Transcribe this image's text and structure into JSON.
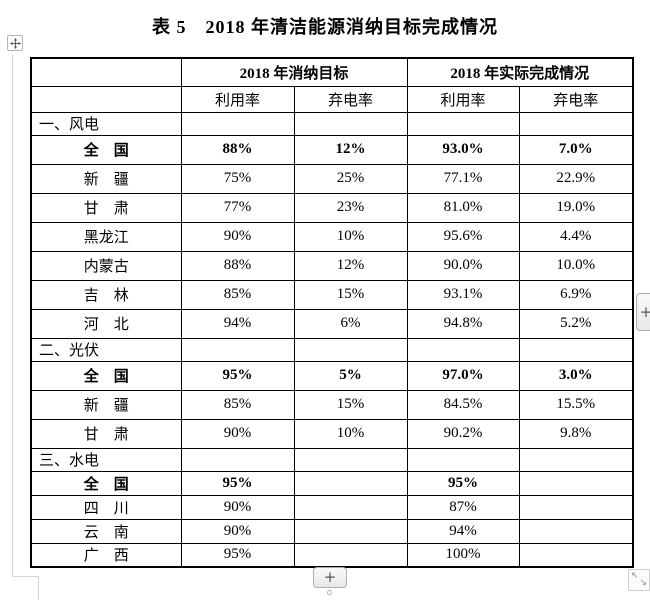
{
  "title": "表 5　2018 年清洁能源消纳目标完成情况",
  "table": {
    "header_groups": {
      "blank": "",
      "target": "2018 年消纳目标",
      "actual": "2018 年实际完成情况"
    },
    "subheaders": [
      "利用率",
      "弃电率",
      "利用率",
      "弃电率"
    ],
    "rows": [
      {
        "type": "section",
        "label": "一、风电",
        "cells": [
          "",
          "",
          "",
          ""
        ]
      },
      {
        "type": "data",
        "bold": true,
        "label": "全　国",
        "cells": [
          "88%",
          "12%",
          "93.0%",
          "7.0%"
        ]
      },
      {
        "type": "data",
        "bold": false,
        "label": "新　疆",
        "cells": [
          "75%",
          "25%",
          "77.1%",
          "22.9%"
        ]
      },
      {
        "type": "data",
        "bold": false,
        "label": "甘　肃",
        "cells": [
          "77%",
          "23%",
          "81.0%",
          "19.0%"
        ]
      },
      {
        "type": "data",
        "bold": false,
        "label": "黑龙江",
        "cells": [
          "90%",
          "10%",
          "95.6%",
          "4.4%"
        ]
      },
      {
        "type": "data",
        "bold": false,
        "label": "内蒙古",
        "cells": [
          "88%",
          "12%",
          "90.0%",
          "10.0%"
        ]
      },
      {
        "type": "data",
        "bold": false,
        "label": "吉　林",
        "cells": [
          "85%",
          "15%",
          "93.1%",
          "6.9%"
        ]
      },
      {
        "type": "data",
        "bold": false,
        "label": "河　北",
        "cells": [
          "94%",
          "6%",
          "94.8%",
          "5.2%"
        ]
      },
      {
        "type": "section",
        "label": "二、光伏",
        "cells": [
          "",
          "",
          "",
          ""
        ]
      },
      {
        "type": "data",
        "bold": true,
        "label": "全　国",
        "cells": [
          "95%",
          "5%",
          "97.0%",
          "3.0%"
        ]
      },
      {
        "type": "data",
        "bold": false,
        "label": "新　疆",
        "cells": [
          "85%",
          "15%",
          "84.5%",
          "15.5%"
        ]
      },
      {
        "type": "data",
        "bold": false,
        "label": "甘　肃",
        "cells": [
          "90%",
          "10%",
          "90.2%",
          "9.8%"
        ]
      },
      {
        "type": "section",
        "label": "三、水电",
        "cells": [
          "",
          "",
          "",
          ""
        ]
      },
      {
        "type": "data",
        "bold": true,
        "compact": true,
        "label": "全　国",
        "cells": [
          "95%",
          "",
          "95%",
          ""
        ]
      },
      {
        "type": "data",
        "bold": false,
        "compact": true,
        "label": "四　川",
        "cells": [
          "90%",
          "",
          "87%",
          ""
        ]
      },
      {
        "type": "data",
        "bold": false,
        "compact": true,
        "label": "云　南",
        "cells": [
          "90%",
          "",
          "94%",
          ""
        ]
      },
      {
        "type": "data",
        "bold": false,
        "compact": true,
        "label": "广　西",
        "cells": [
          "95%",
          "",
          "100%",
          ""
        ]
      }
    ]
  },
  "chrome": {
    "insert_column_button": "+",
    "insert_row_button": "+",
    "resize_arrow_nw": "↖",
    "resize_arrow_se": "↘"
  },
  "colors": {
    "table_border": "#000000",
    "text": "#000000",
    "handle_border": "#adadad",
    "page_boundary": "#d6d6d6"
  }
}
